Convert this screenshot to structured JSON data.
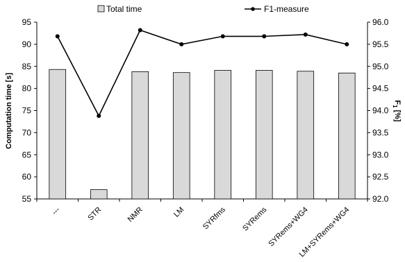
{
  "chart_data": {
    "type": "bar",
    "categories": [
      "---",
      "STR",
      "NMR",
      "LM",
      "SYRfms",
      "SYRems",
      "SYRems+WG4",
      "LM+SYRems+WG4"
    ],
    "series": [
      {
        "name": "Total time",
        "type": "bar",
        "axis": "left",
        "values": [
          84.3,
          57.1,
          83.8,
          83.6,
          84.1,
          84.1,
          83.9,
          83.5
        ],
        "color": "#d9d9d9"
      },
      {
        "name": "F1-measure",
        "type": "line",
        "axis": "right",
        "values": [
          95.68,
          93.88,
          95.82,
          95.5,
          95.68,
          95.68,
          95.72,
          95.5
        ],
        "color": "#000000"
      }
    ],
    "ylabel_left": "Computation time [s]",
    "ylabel_right_main": "F",
    "ylabel_right_sub": "1",
    "ylabel_right_suffix": " [%]",
    "ylim_left": [
      55,
      95
    ],
    "yticks_left": [
      "55",
      "60",
      "65",
      "70",
      "75",
      "80",
      "85",
      "90",
      "95"
    ],
    "ylim_right": [
      92.0,
      96.0
    ],
    "yticks_right": [
      "92.0",
      "92.5",
      "93.0",
      "93.5",
      "94.0",
      "94.5",
      "95.0",
      "95.5",
      "96.0"
    ],
    "grid": false,
    "legend_placement": "top"
  }
}
